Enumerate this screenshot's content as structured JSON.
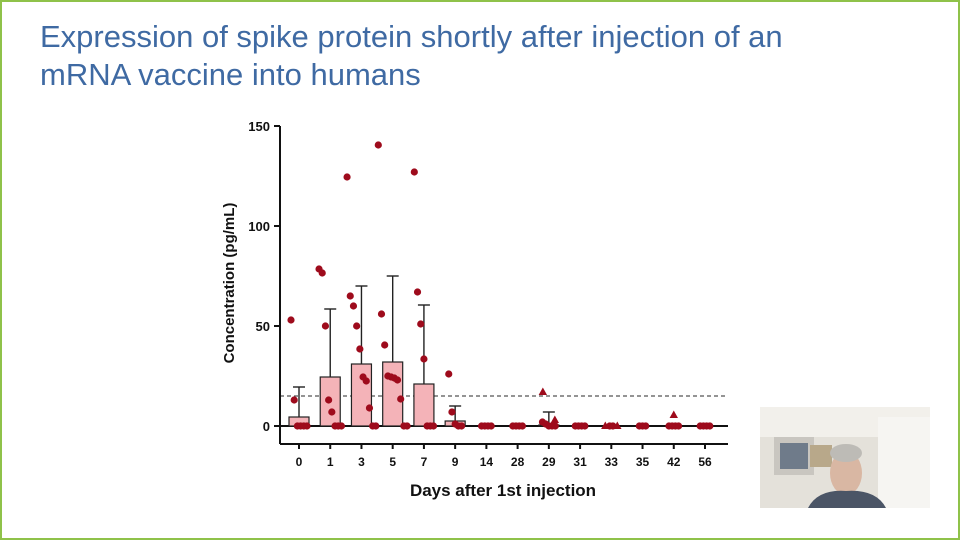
{
  "slide": {
    "title_line1": "Expression of spike protein shortly after injection of an",
    "title_line2": "mRNA vaccine into humans",
    "border_color": "#8fc24a",
    "title_color": "#3f6aa3"
  },
  "chart_data": {
    "type": "bar",
    "subtype": "box-whisker with individual points",
    "xlabel": "Days after 1st injection",
    "ylabel": "Concentration (pg/mL)",
    "ylim": [
      0,
      150
    ],
    "yticks": [
      0,
      50,
      100,
      150
    ],
    "categories": [
      "0",
      "1",
      "3",
      "5",
      "7",
      "9",
      "14",
      "28",
      "29",
      "31",
      "33",
      "35",
      "42",
      "56"
    ],
    "reference_line": 15,
    "box_fill": "#f4b3b8",
    "point_color": "#9e0b1c",
    "boxes": [
      {
        "q1": 0,
        "median": 0,
        "q3": 4.5,
        "whisker": 19.5
      },
      {
        "q1": 0,
        "median": 0,
        "q3": 24.5,
        "whisker": 58.5
      },
      {
        "q1": 0,
        "median": 0,
        "q3": 31,
        "whisker": 70
      },
      {
        "q1": 0,
        "median": 0,
        "q3": 32,
        "whisker": 75
      },
      {
        "q1": 0,
        "median": 0,
        "q3": 21,
        "whisker": 60.5
      },
      {
        "q1": 0,
        "median": 0,
        "q3": 2.5,
        "whisker": 10
      },
      {
        "q1": 0,
        "median": 0,
        "q3": 0,
        "whisker": 0
      },
      {
        "q1": 0,
        "median": 0,
        "q3": 0,
        "whisker": 0
      },
      {
        "q1": 0,
        "median": 0,
        "q3": 0.5,
        "whisker": 7
      },
      {
        "q1": 0,
        "median": 0,
        "q3": 0,
        "whisker": 0
      },
      {
        "q1": 0,
        "median": 0,
        "q3": 0,
        "whisker": 0
      },
      {
        "q1": 0,
        "median": 0,
        "q3": 0,
        "whisker": 0
      },
      {
        "q1": 0,
        "median": 0,
        "q3": 0,
        "whisker": 0
      },
      {
        "q1": 0,
        "median": 0,
        "q3": 0,
        "whisker": 0
      }
    ],
    "points": [
      {
        "day": "0",
        "values": [
          53,
          13,
          0,
          0,
          0,
          0
        ]
      },
      {
        "day": "1",
        "values": [
          78.5,
          76.5,
          50,
          13,
          7,
          0,
          0,
          0
        ]
      },
      {
        "day": "3",
        "values": [
          124.5,
          65,
          60,
          50,
          38.5,
          24.5,
          22.5,
          9,
          0,
          0
        ]
      },
      {
        "day": "5",
        "values": [
          140.5,
          56,
          40.5,
          25,
          24.5,
          24,
          23,
          13.5,
          0,
          0
        ]
      },
      {
        "day": "7",
        "values": [
          127,
          67,
          51,
          33.5,
          0,
          0,
          0
        ]
      },
      {
        "day": "9",
        "values": [
          26,
          7,
          1,
          0,
          0
        ]
      },
      {
        "day": "14",
        "values": [
          0,
          0,
          0,
          0
        ]
      },
      {
        "day": "28",
        "values": [
          0,
          0,
          0,
          0
        ]
      },
      {
        "day": "29",
        "values": [
          2,
          1,
          0,
          0,
          0
        ]
      },
      {
        "day": "31",
        "values": [
          0,
          0,
          0,
          0
        ]
      },
      {
        "day": "33",
        "values": [
          0,
          0
        ]
      },
      {
        "day": "35",
        "values": [
          0,
          0,
          0
        ]
      },
      {
        "day": "42",
        "values": [
          0,
          0,
          0,
          0
        ]
      },
      {
        "day": "56",
        "values": [
          0,
          0,
          0,
          0
        ]
      }
    ],
    "triangles": [
      {
        "day": "29",
        "values": [
          17,
          3
        ]
      },
      {
        "day": "33",
        "values": [
          0,
          0
        ]
      },
      {
        "day": "42",
        "values": [
          5.5
        ]
      }
    ]
  }
}
